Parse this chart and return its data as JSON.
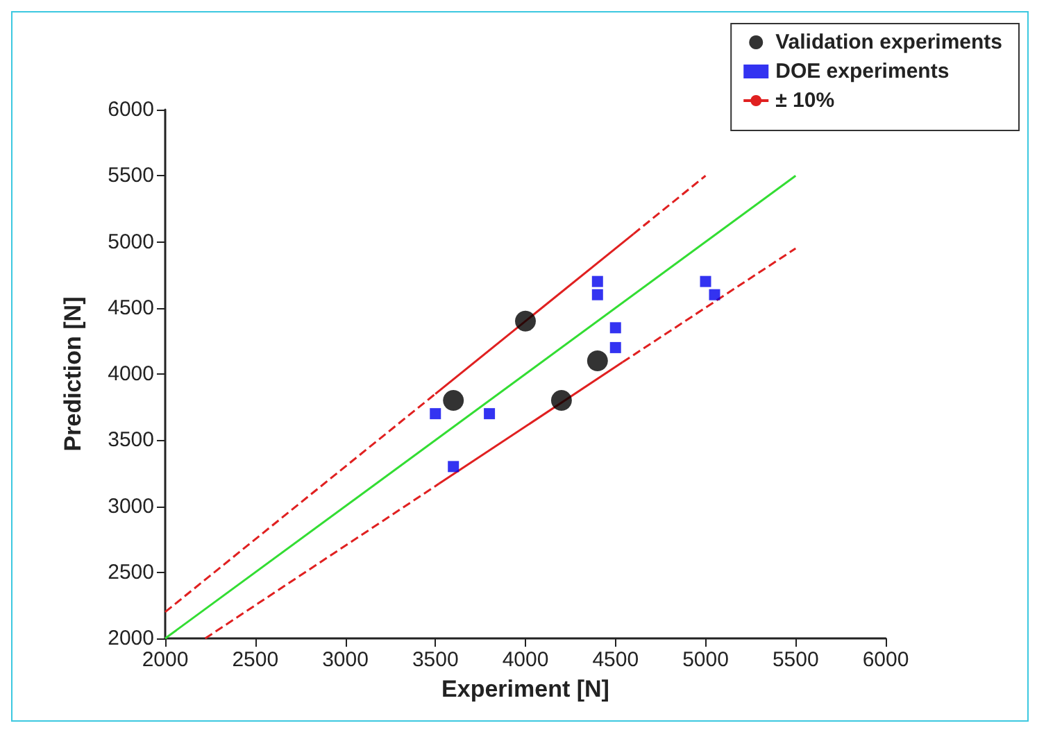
{
  "chart_data": {
    "type": "scatter",
    "xlabel": "Experiment [N]",
    "ylabel": "Prediction [N]",
    "xlim": [
      2000,
      6000
    ],
    "xticks": [
      2000,
      2500,
      3000,
      3500,
      4000,
      4500,
      5000,
      5500,
      6000
    ],
    "ylim": [
      2000,
      6000
    ],
    "yticks": [
      2000,
      2500,
      3000,
      3500,
      4000,
      4500,
      5000,
      5500,
      6000
    ],
    "grid": false,
    "legend": "top right",
    "series": [
      {
        "name": "Validation experiments",
        "marker": "circle",
        "color": "#000000",
        "x": [
          3600,
          4000,
          4200,
          4400
        ],
        "values": [
          3800,
          4400,
          3800,
          4100
        ]
      },
      {
        "name": "DOE experiments",
        "marker": "square",
        "color": "#0000ee",
        "x": [
          3500,
          3800,
          3600,
          4400,
          4400,
          4500,
          4500,
          5000,
          5050
        ],
        "values": [
          3700,
          3700,
          3300,
          4700,
          4600,
          4350,
          4200,
          4700,
          4600
        ]
      },
      {
        "name": "± 10%",
        "type": "line",
        "line_style": "dashed",
        "color": "#e02020",
        "x": [
          2000,
          3500
        ],
        "values": [
          2200,
          3850
        ]
      },
      {
        "type": "line",
        "line_style": "solid",
        "color": "#e02020",
        "x": [
          3500,
          4600
        ],
        "values": [
          3850,
          5060
        ]
      },
      {
        "type": "line",
        "line_style": "dashed",
        "color": "#e02020",
        "x": [
          4600,
          5000
        ],
        "values": [
          5060,
          5500
        ]
      },
      {
        "type": "line",
        "line_style": "dashed",
        "color": "#e02020",
        "x": [
          2222,
          3520
        ],
        "values": [
          2000,
          3170
        ]
      },
      {
        "type": "line",
        "line_style": "solid",
        "color": "#e02020",
        "x": [
          3520,
          4540
        ],
        "values": [
          3170,
          4090
        ]
      },
      {
        "type": "line",
        "line_style": "dashed",
        "color": "#e02020",
        "x": [
          4540,
          5500
        ],
        "values": [
          4090,
          4950
        ]
      },
      {
        "type": "line",
        "line_style": "solid",
        "color": "#33dd33",
        "x": [
          2000,
          5500
        ],
        "values": [
          2000,
          5500
        ]
      }
    ]
  }
}
